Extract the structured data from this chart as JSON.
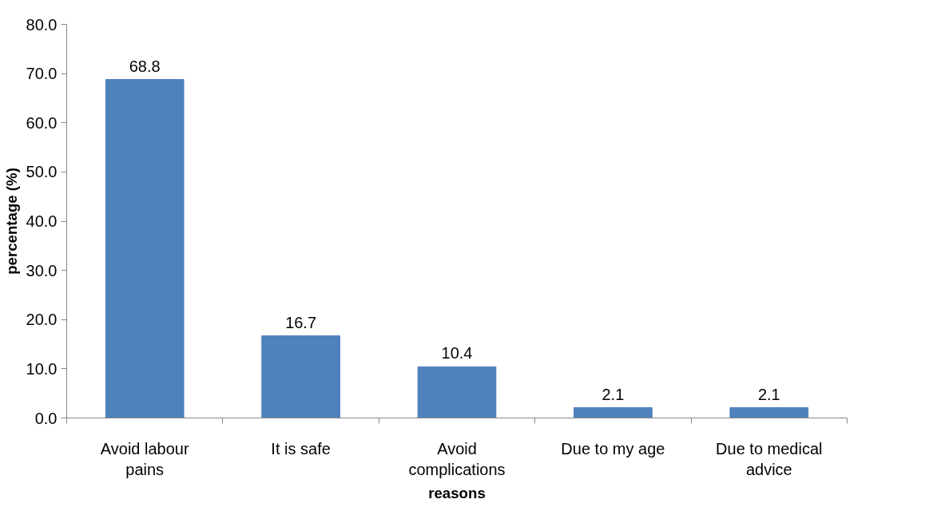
{
  "chart_data": {
    "type": "bar",
    "xlabel": "reasons",
    "ylabel": "percentage (%)",
    "categories": [
      "Avoid labour\npains",
      "It is safe",
      "Avoid\ncomplications",
      "Due to my age",
      "Due to medical\nadvice"
    ],
    "values": [
      68.8,
      16.7,
      10.4,
      2.1,
      2.1
    ],
    "color": "#4f81bd",
    "data_labels": true,
    "grid": false,
    "ylim": [
      0,
      80
    ],
    "yticks": [
      {
        "value": 0,
        "label": "0.0"
      },
      {
        "value": 10,
        "label": "10.0"
      },
      {
        "value": 20,
        "label": "20.0"
      },
      {
        "value": 30,
        "label": "30.0"
      },
      {
        "value": 40,
        "label": "40.0"
      },
      {
        "value": 50,
        "label": "50.0"
      },
      {
        "value": 60,
        "label": "60.0"
      },
      {
        "value": 70,
        "label": "70.0"
      },
      {
        "value": 80,
        "label": "80.0"
      }
    ]
  }
}
